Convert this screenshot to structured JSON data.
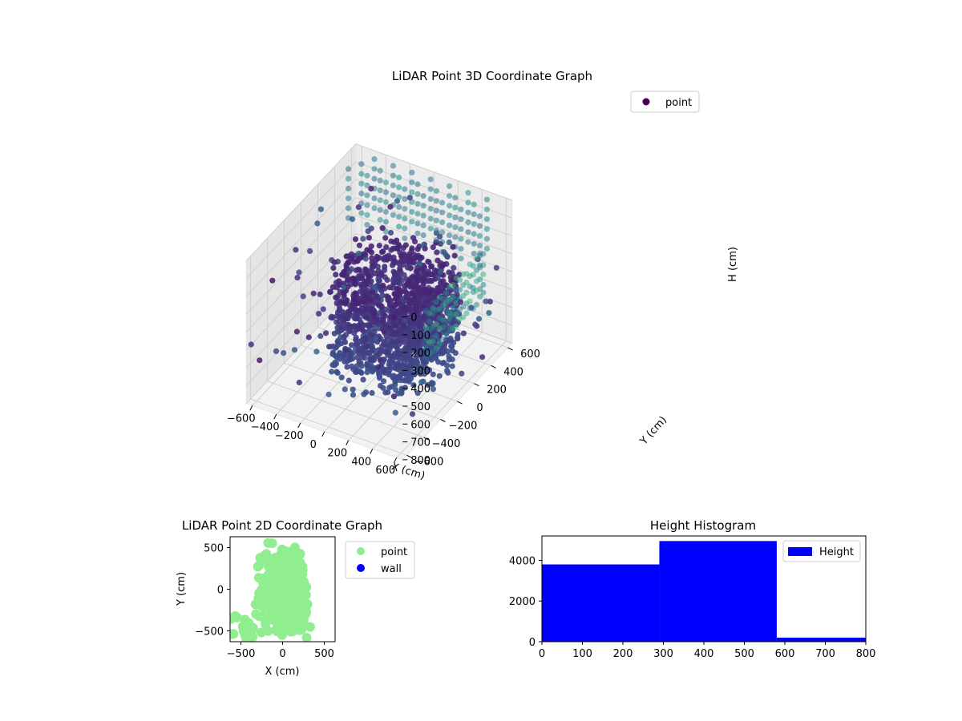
{
  "figure": {
    "background": "#ffffff"
  },
  "chart_data": [
    {
      "type": "scatter",
      "projection": "3d",
      "title": "LiDAR Point 3D Coordinate Graph",
      "xlabel": "X (cm)",
      "ylabel": "Y (cm)",
      "zlabel": "H (cm)",
      "xlim": [
        -650,
        650
      ],
      "ylim": [
        -650,
        650
      ],
      "zlim": [
        0,
        800
      ],
      "z_axis_inverted": true,
      "x_ticks": [
        "−600",
        "−400",
        "−200",
        "0",
        "200",
        "400",
        "600"
      ],
      "y_ticks": [
        "−600",
        "−400",
        "−200",
        "0",
        "200",
        "400",
        "600"
      ],
      "z_ticks": [
        "0",
        "100",
        "200",
        "300",
        "400",
        "500",
        "600",
        "700",
        "800"
      ],
      "x_tick_values": [
        -600,
        -400,
        -200,
        0,
        200,
        400,
        600
      ],
      "y_tick_values": [
        -600,
        -400,
        -200,
        0,
        200,
        400,
        600
      ],
      "z_tick_values": [
        0,
        100,
        200,
        300,
        400,
        500,
        600,
        700,
        800
      ],
      "grid": true,
      "legend": {
        "position": "top-right",
        "entries": [
          {
            "label": "point",
            "color": "#440154"
          }
        ]
      },
      "colormap": "viridis",
      "series": [
        {
          "name": "point",
          "marker": "circle",
          "structures": [
            {
              "kind": "spiral_band",
              "center": [
                50,
                100
              ],
              "radius_range": [
                150,
                450
              ],
              "height_range": [
                250,
                750
              ],
              "approx_points": 4400
            },
            {
              "kind": "wall_columns",
              "location": "top-back",
              "height_range": [
                0,
                300
              ]
            },
            {
              "kind": "scattered_outliers",
              "approx_points": 120
            }
          ]
        }
      ]
    },
    {
      "type": "scatter",
      "title": "LiDAR Point 2D Coordinate Graph",
      "xlabel": "X (cm)",
      "ylabel": "Y (cm)",
      "xlim": [
        -630,
        630
      ],
      "ylim": [
        -630,
        630
      ],
      "x_ticks": [
        "−500",
        "0",
        "500"
      ],
      "y_ticks": [
        "−500",
        "0",
        "500"
      ],
      "x_tick_values": [
        -500,
        0,
        500
      ],
      "y_tick_values": [
        -500,
        0,
        500
      ],
      "grid": false,
      "legend": {
        "position": "outside-right",
        "entries": [
          {
            "label": "point",
            "color": "#90ee90"
          },
          {
            "label": "wall",
            "color": "#0000ff"
          }
        ]
      },
      "series": [
        {
          "name": "point",
          "color": "#90ee90",
          "description_region": {
            "center": [
              0,
              0
            ],
            "spread": [
              350,
              600
            ]
          }
        },
        {
          "name": "wall",
          "color": "#0000ff",
          "count": 0
        }
      ]
    },
    {
      "type": "bar",
      "subtype": "histogram",
      "title": "Height Histogram",
      "xlabel": "",
      "ylabel": "",
      "xlim": [
        0,
        800
      ],
      "ylim": [
        0,
        5200
      ],
      "x_ticks": [
        "0",
        "100",
        "200",
        "300",
        "400",
        "500",
        "600",
        "700",
        "800"
      ],
      "y_ticks": [
        "0",
        "2000",
        "4000"
      ],
      "x_tick_values": [
        0,
        100,
        200,
        300,
        400,
        500,
        600,
        700,
        800
      ],
      "y_tick_values": [
        0,
        2000,
        4000
      ],
      "grid": false,
      "legend": {
        "position": "top-right",
        "entries": [
          {
            "label": "Height",
            "color": "#0000ff"
          }
        ]
      },
      "series": [
        {
          "name": "Height",
          "color": "#0000ff",
          "bins": [
            [
              0,
              290
            ],
            [
              290,
              580
            ],
            [
              580,
              870
            ]
          ],
          "values": [
            3800,
            4950,
            200
          ]
        }
      ]
    }
  ]
}
